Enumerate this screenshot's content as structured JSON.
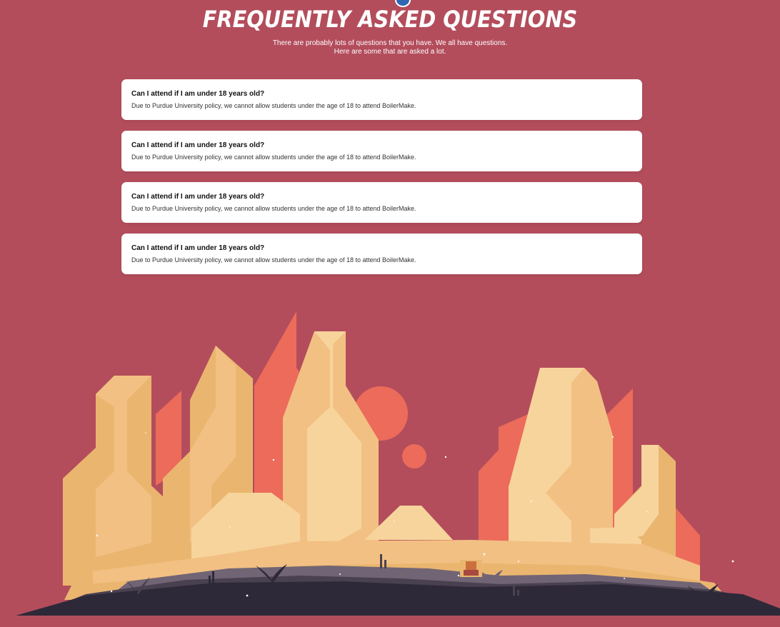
{
  "header": {
    "title": "FREQUENTLY ASKED QUESTIONS",
    "subtitle_line1": "There are probably lots of questions that you have. We all have questions.",
    "subtitle_line2": "Here are some that are asked a lot."
  },
  "faq": [
    {
      "question": "Can I attend if I am under 18 years old?",
      "answer": "Due to Purdue University policy, we cannot allow students under the age of 18 to attend BoilerMake."
    },
    {
      "question": "Can I attend if I am under 18 years old?",
      "answer": "Due to Purdue University policy, we cannot allow students under the age of 18 to attend BoilerMake."
    },
    {
      "question": "Can I attend if I am under 18 years old?",
      "answer": "Due to Purdue University policy, we cannot allow students under the age of 18 to attend BoilerMake."
    },
    {
      "question": "Can I attend if I am under 18 years old?",
      "answer": "Due to Purdue University policy, we cannot allow students under the age of 18 to attend BoilerMake."
    }
  ],
  "colors": {
    "background": "#b34d5c",
    "card": "#ffffff",
    "rock_light": "#f7d49c",
    "rock_mid": "#f2c083",
    "rock_dark": "#eab66f",
    "rock_red": "#ec6b5a",
    "ground_dark": "#2e2938",
    "ground_mid": "#4a4150",
    "ground_light": "#716474"
  },
  "icons": {
    "top_marker": "circle-marker-icon",
    "treasure": "treasure-chest-icon"
  }
}
